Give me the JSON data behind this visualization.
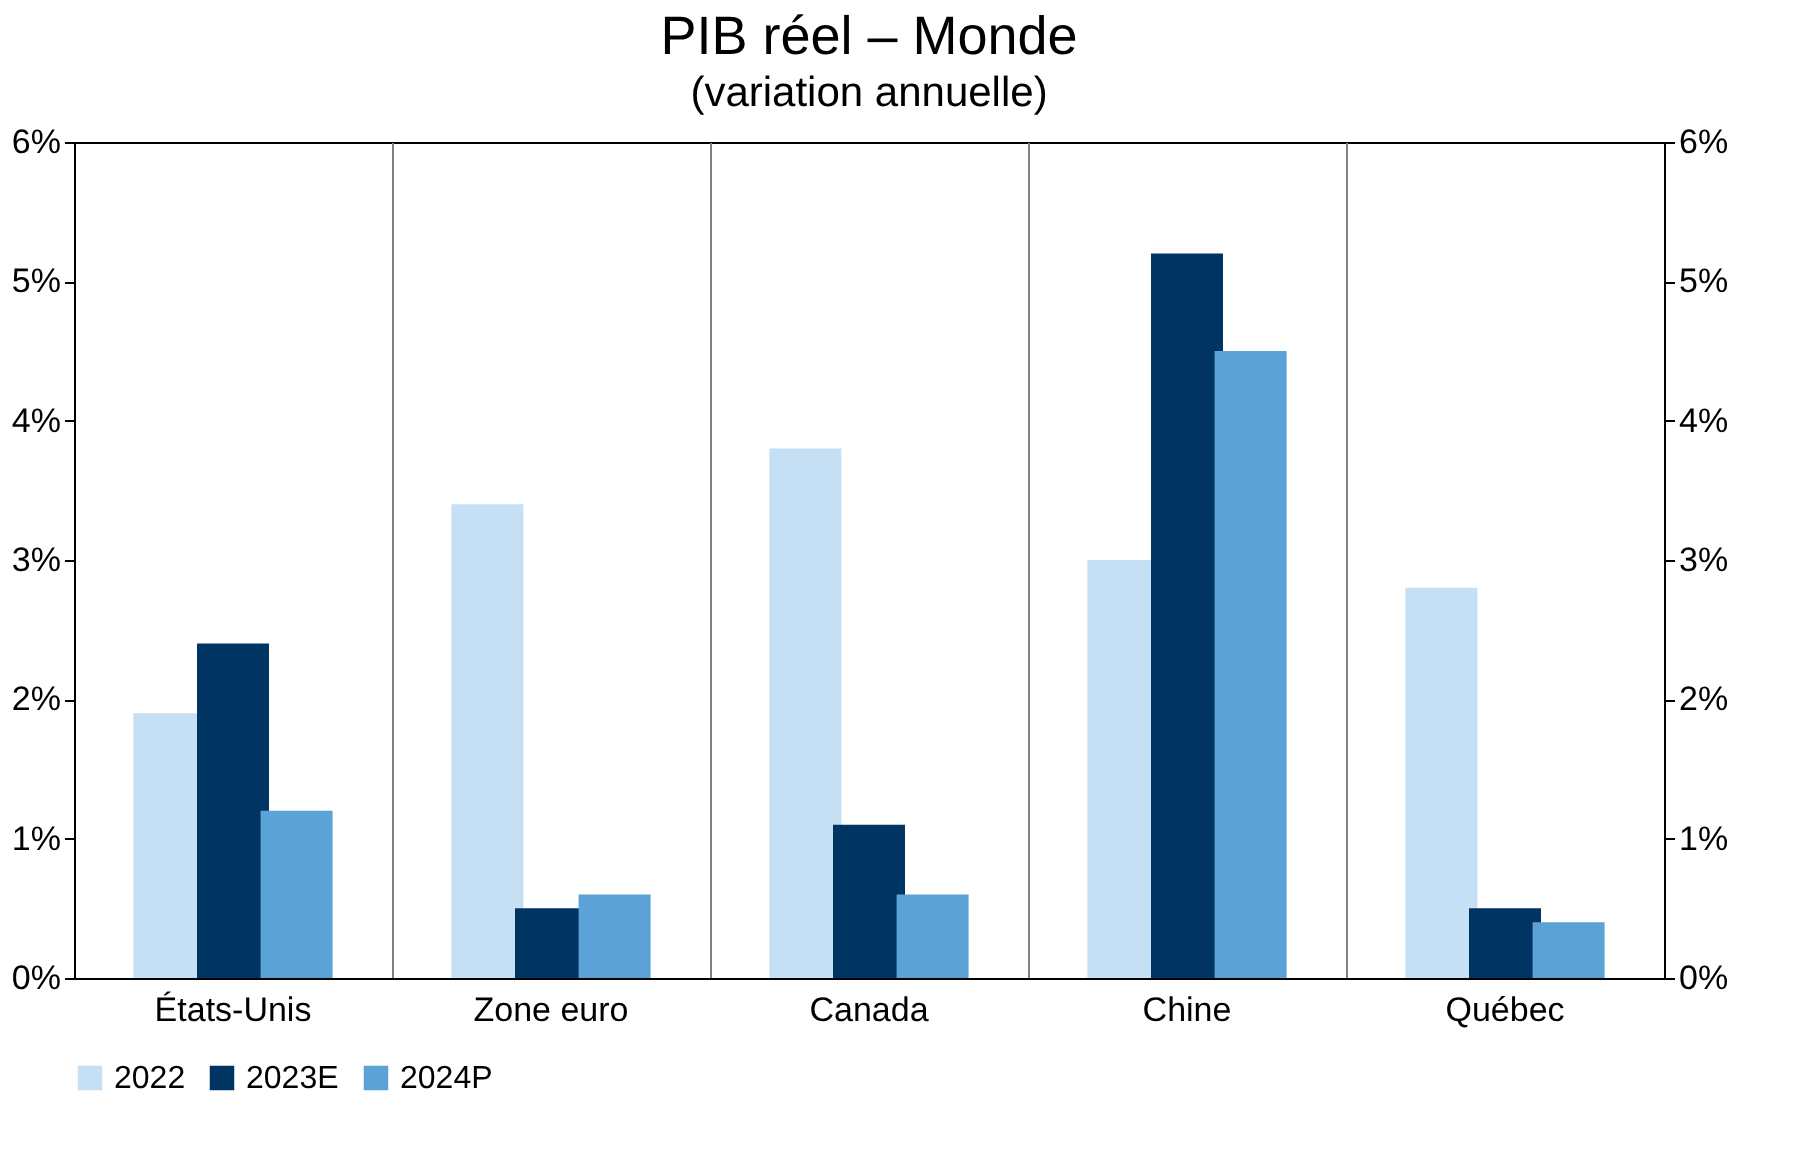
{
  "chart_data": {
    "type": "bar",
    "title": "PIB réel – Monde",
    "subtitle": "(variation annuelle)",
    "categories": [
      "États-Unis",
      "Zone euro",
      "Canada",
      "Chine",
      "Québec"
    ],
    "series": [
      {
        "name": "2022",
        "color": "#c5e0f4",
        "values": [
          1.9,
          3.4,
          3.8,
          3.0,
          2.8
        ]
      },
      {
        "name": "2023E",
        "color": "#003462",
        "values": [
          2.4,
          0.5,
          1.1,
          5.2,
          0.5
        ]
      },
      {
        "name": "2024P",
        "color": "#5ba3d6",
        "values": [
          1.2,
          0.6,
          0.6,
          4.5,
          0.4
        ]
      }
    ],
    "ylim": [
      0,
      6
    ],
    "yticks": [
      {
        "value": 0,
        "label": "0%"
      },
      {
        "value": 1,
        "label": "1%"
      },
      {
        "value": 2,
        "label": "2%"
      },
      {
        "value": 3,
        "label": "3%"
      },
      {
        "value": 4,
        "label": "4%"
      },
      {
        "value": 5,
        "label": "5%"
      },
      {
        "value": 6,
        "label": "6%"
      }
    ],
    "y2lim": [
      0,
      6
    ],
    "y2ticks": [
      {
        "value": 0,
        "label": "0%"
      },
      {
        "value": 1,
        "label": "1%"
      },
      {
        "value": 2,
        "label": "2%"
      },
      {
        "value": 3,
        "label": "3%"
      },
      {
        "value": 4,
        "label": "4%"
      },
      {
        "value": 5,
        "label": "5%"
      },
      {
        "value": 6,
        "label": "6%"
      }
    ],
    "grid": "x",
    "legend": "bottom"
  }
}
